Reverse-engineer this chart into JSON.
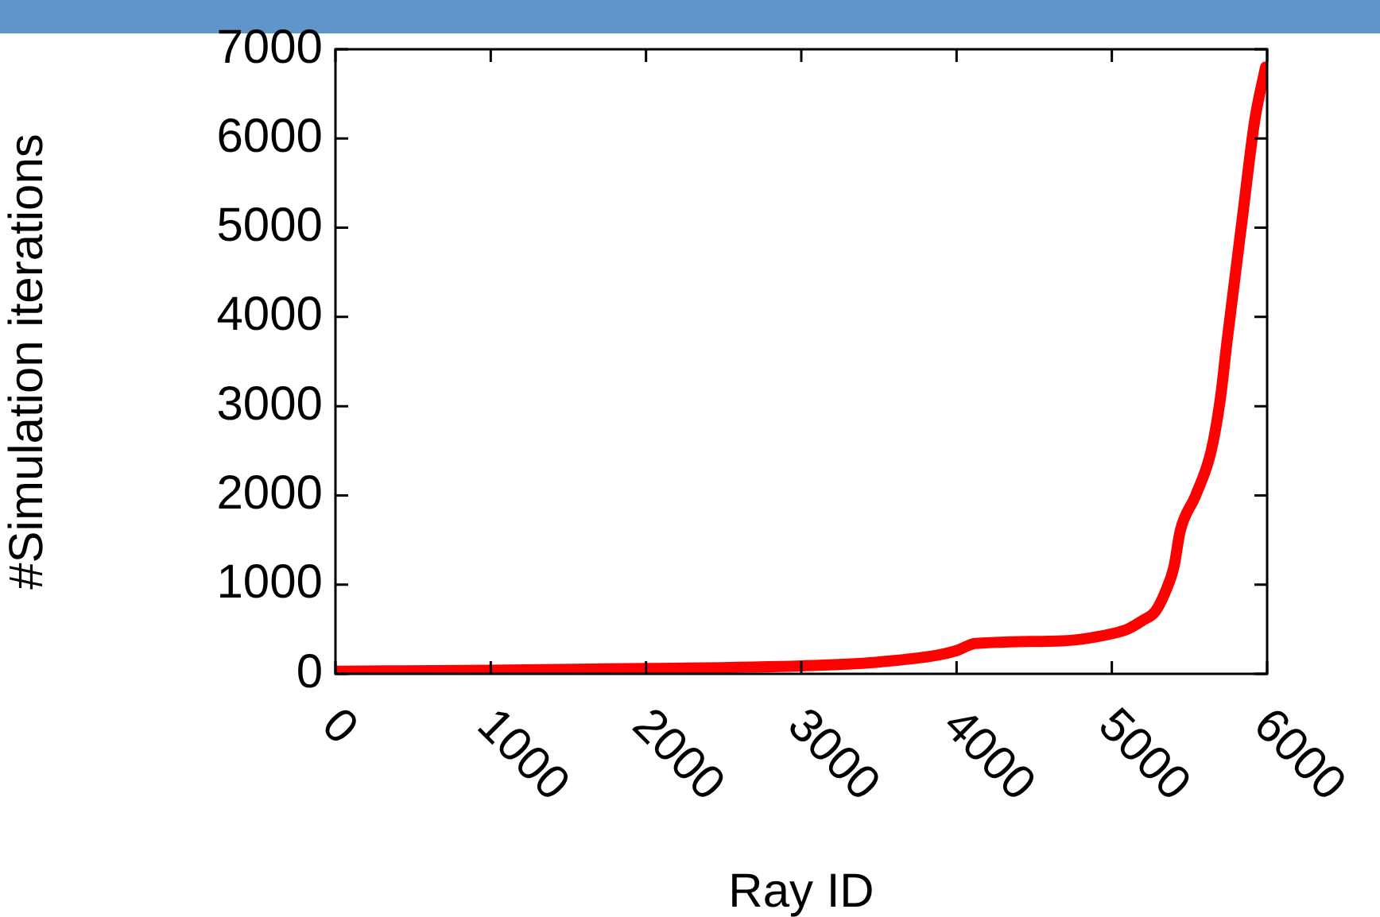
{
  "chart_data": {
    "type": "line",
    "xlabel": "Ray ID",
    "ylabel": "#Simulation iterations",
    "x": [
      0,
      1000,
      2000,
      3000,
      3480,
      3880,
      4000,
      4120,
      4680,
      5000,
      5100,
      5200,
      5280,
      5340,
      5400,
      5440,
      5540,
      5640,
      5700,
      5740,
      5840,
      5920,
      5990
    ],
    "series": [
      {
        "color": "#ff0000",
        "values": [
          30,
          40,
          60,
          90,
          130,
          210,
          260,
          340,
          370,
          450,
          500,
          600,
          700,
          900,
          1200,
          1600,
          2000,
          2500,
          3100,
          3700,
          5100,
          6200,
          6800
        ]
      }
    ],
    "xlim": [
      0,
      6000
    ],
    "xticks": [
      0,
      1000,
      2000,
      3000,
      4000,
      5000,
      6000
    ],
    "ylim": [
      0,
      7000
    ],
    "yticks": [
      0,
      1000,
      2000,
      3000,
      4000,
      5000,
      6000,
      7000
    ],
    "grid": false,
    "legend": false,
    "marker": "none",
    "line_style": "solid"
  }
}
